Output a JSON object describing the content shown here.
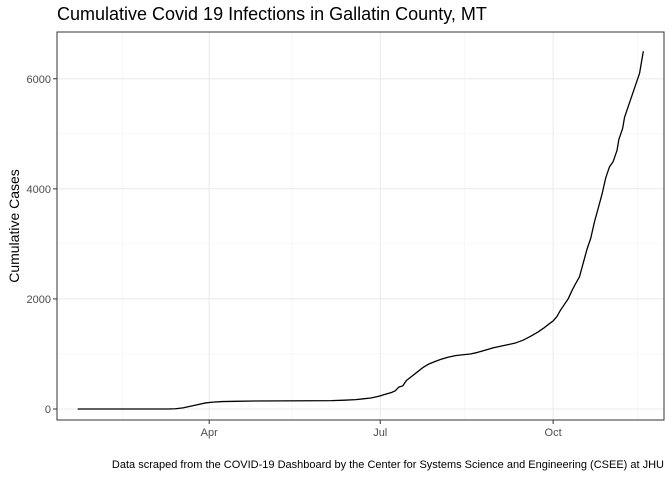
{
  "chart_data": {
    "type": "line",
    "title": "Cumulative Covid 19 Infections in Gallatin County, MT",
    "caption": "Data scraped from the COVID-19 Dashboard by the Center for Systems Science and Engineering (CSEE) at JHU",
    "xlabel": "",
    "ylabel": "Cumulative Cases",
    "xlim": [
      "2020-01-11",
      "2020-11-29"
    ],
    "ylim": [
      -200,
      6850
    ],
    "x_ticks": [
      {
        "date": "2020-04-01",
        "label": "Apr"
      },
      {
        "date": "2020-07-01",
        "label": "Jul"
      },
      {
        "date": "2020-10-01",
        "label": "Oct"
      }
    ],
    "x_minor_ticks": [
      "2020-02-15",
      "2020-05-15",
      "2020-08-15",
      "2020-11-15"
    ],
    "y_ticks": [
      0,
      2000,
      4000,
      6000
    ],
    "y_minor_ticks": [
      1000,
      3000,
      5000
    ],
    "grid": true,
    "line_color": "#000000",
    "series": [
      {
        "x": [
          "2020-01-22",
          "2020-02-15",
          "2020-03-01",
          "2020-03-10",
          "2020-03-14",
          "2020-03-18",
          "2020-03-22",
          "2020-03-26",
          "2020-03-30",
          "2020-04-03",
          "2020-04-08",
          "2020-04-15",
          "2020-04-25",
          "2020-05-10",
          "2020-05-25",
          "2020-06-05",
          "2020-06-12",
          "2020-06-18",
          "2020-06-22",
          "2020-06-26",
          "2020-06-30",
          "2020-07-04",
          "2020-07-07",
          "2020-07-09",
          "2020-07-11",
          "2020-07-13",
          "2020-07-15",
          "2020-07-18",
          "2020-07-21",
          "2020-07-24",
          "2020-07-27",
          "2020-07-30",
          "2020-08-02",
          "2020-08-06",
          "2020-08-10",
          "2020-08-14",
          "2020-08-18",
          "2020-08-22",
          "2020-08-26",
          "2020-08-30",
          "2020-09-03",
          "2020-09-07",
          "2020-09-11",
          "2020-09-15",
          "2020-09-19",
          "2020-09-23",
          "2020-09-26",
          "2020-09-29",
          "2020-10-01",
          "2020-10-03",
          "2020-10-05",
          "2020-10-07",
          "2020-10-09",
          "2020-10-11",
          "2020-10-13",
          "2020-10-15",
          "2020-10-17",
          "2020-10-19",
          "2020-10-21",
          "2020-10-23",
          "2020-10-25",
          "2020-10-27",
          "2020-10-29",
          "2020-10-31",
          "2020-11-02",
          "2020-11-04",
          "2020-11-05",
          "2020-11-07",
          "2020-11-08",
          "2020-11-10",
          "2020-11-12",
          "2020-11-14",
          "2020-11-16",
          "2020-11-17",
          "2020-11-18"
        ],
        "y": [
          0,
          0,
          0,
          0,
          5,
          20,
          50,
          80,
          110,
          125,
          135,
          140,
          145,
          148,
          150,
          152,
          160,
          170,
          185,
          200,
          230,
          270,
          300,
          330,
          400,
          420,
          520,
          600,
          680,
          760,
          820,
          860,
          900,
          940,
          970,
          985,
          1000,
          1030,
          1070,
          1110,
          1140,
          1170,
          1200,
          1250,
          1320,
          1400,
          1470,
          1550,
          1600,
          1680,
          1800,
          1900,
          2000,
          2150,
          2280,
          2400,
          2650,
          2900,
          3100,
          3400,
          3650,
          3900,
          4200,
          4400,
          4500,
          4700,
          4900,
          5100,
          5300,
          5500,
          5700,
          5900,
          6100,
          6300,
          6500
        ]
      }
    ]
  }
}
